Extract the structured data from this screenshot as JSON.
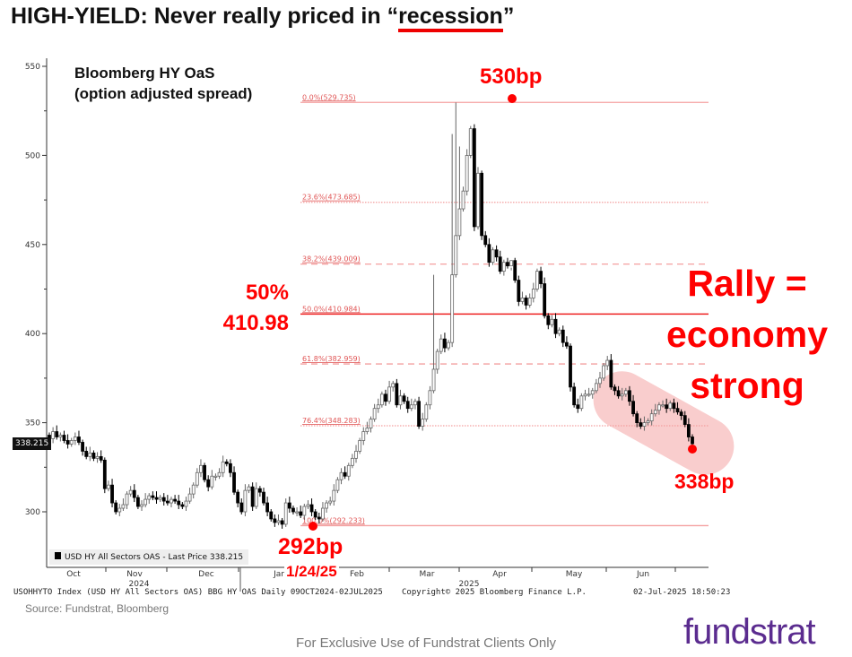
{
  "title_prefix": "HIGH-YIELD: Never really priced in “",
  "title_highlight": "recession",
  "title_suffix": "”",
  "subtitle_line1": "Bloomberg HY OaS",
  "subtitle_line2": "(option adjusted spread)",
  "annotations": {
    "peak": "530bp",
    "fib50_pct": "50%",
    "fib50_val": "410.98",
    "low": "292bp",
    "low_date": "1/24/25",
    "rally_line1": "Rally =",
    "rally_line2": "economy",
    "rally_line3": "strong",
    "current": "338bp"
  },
  "last_price_tag": "338.215",
  "legend": "USD HY All Sectors OAS - Last Price 338.215",
  "footer_info": "USOHHYTO Index (USD HY All Sectors OAS) BBG HY OAS  Daily 09OCT2024-02JUL2025",
  "copyright": "Copyright© 2025 Bloomberg Finance L.P.",
  "timestamp": "02-Jul-2025 18:50:23",
  "source": "Source: Fundstrat, Bloomberg",
  "disclaimer": "For Exclusive Use of Fundstrat Clients Only",
  "logo": "fundstrat",
  "colors": {
    "accent": "#ff0000",
    "fib": "#f4a0a0",
    "logo": "#5b2c8f",
    "highlight": "#f8c4c4"
  },
  "chart_data": {
    "type": "candlestick",
    "title": "Bloomberg HY OaS",
    "ylim": [
      280,
      555
    ],
    "yticks": [
      "300",
      "350",
      "400",
      "450",
      "500",
      "550"
    ],
    "months": [
      "Oct",
      "Nov",
      "Dec",
      "Jan",
      "Feb",
      "Mar",
      "Apr",
      "May",
      "Jun"
    ],
    "years": [
      "2024",
      "2025"
    ],
    "fib_levels": [
      {
        "label": "0.0%(529.735)",
        "value": 529.735,
        "style": "solid"
      },
      {
        "label": "23.6%(473.685)",
        "value": 473.685,
        "style": "dotted"
      },
      {
        "label": "38.2%(439.009)",
        "value": 439.009,
        "style": "dashed"
      },
      {
        "label": "50.0%(410.984)",
        "value": 410.984,
        "style": "main"
      },
      {
        "label": "61.8%(382.959)",
        "value": 382.959,
        "style": "dashed"
      },
      {
        "label": "76.4%(348.283)",
        "value": 348.283,
        "style": "dotted"
      },
      {
        "label": "100.0%(292.233)",
        "value": 292.233,
        "style": "solid"
      }
    ],
    "close": [
      341,
      345,
      342,
      343,
      340,
      338,
      340,
      342,
      339,
      334,
      331,
      333,
      330,
      331,
      329,
      313,
      315,
      305,
      300,
      302,
      304,
      310,
      312,
      308,
      303,
      304,
      307,
      309,
      308,
      307,
      308,
      306,
      305,
      307,
      306,
      304,
      303,
      306,
      310,
      315,
      322,
      326,
      318,
      314,
      320,
      320,
      322,
      328,
      327,
      322,
      311,
      305,
      300,
      312,
      314,
      303,
      313,
      311,
      305,
      300,
      296,
      294,
      295,
      293,
      305,
      302,
      300,
      300,
      298,
      303,
      304,
      300,
      297,
      296,
      302,
      305,
      306,
      312,
      318,
      322,
      320,
      326,
      330,
      334,
      340,
      345,
      347,
      352,
      358,
      360,
      366,
      362,
      370,
      372,
      360,
      365,
      362,
      358,
      360,
      362,
      348,
      352,
      360,
      368,
      380,
      390,
      397,
      392,
      395,
      433,
      455,
      470,
      480,
      500,
      515,
      460,
      490,
      455,
      450,
      440,
      447,
      443,
      435,
      440,
      438,
      441,
      430,
      418,
      420,
      416,
      420,
      425,
      435,
      428,
      410,
      405,
      408,
      400,
      402,
      395,
      393,
      370,
      360,
      358,
      365,
      366,
      366,
      368,
      372,
      375,
      382,
      385,
      370,
      368,
      365,
      366,
      368,
      362,
      355,
      350,
      348,
      350,
      351,
      355,
      357,
      360,
      360,
      358,
      361,
      358,
      356,
      354,
      349,
      342,
      338.215
    ],
    "spike_highs": {
      "110": 529.7,
      "109": 512,
      "111": 505,
      "104": 433,
      "125": 437
    }
  }
}
